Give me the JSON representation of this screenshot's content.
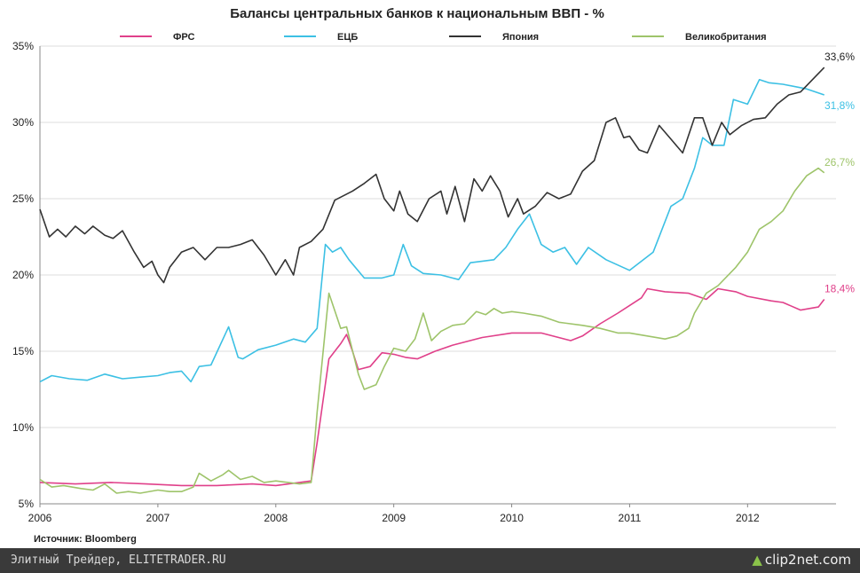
{
  "colors": {
    "fed": "#e0408a",
    "ecb": "#3cc0e4",
    "japan": "#333333",
    "uk": "#9ec46a"
  },
  "source": "Источник: Bloomberg",
  "footer": {
    "site": "Элитный Трейдер, ELITETRADER.RU",
    "logo": "clip2net.com"
  },
  "chart_data": {
    "type": "line",
    "title": "Балансы центральных банков к национальным ВВП - %",
    "xlabel": "",
    "ylabel": "",
    "xlim": [
      2006,
      2012.75
    ],
    "ylim": [
      5,
      35
    ],
    "yticks": [
      5,
      10,
      15,
      20,
      25,
      30,
      35
    ],
    "ytick_labels": [
      "5%",
      "10%",
      "15%",
      "20%",
      "25%",
      "30%",
      "35%"
    ],
    "xticks": [
      2006,
      2007,
      2008,
      2009,
      2010,
      2011,
      2012
    ],
    "xtick_labels": [
      "2006",
      "2007",
      "2008",
      "2009",
      "2010",
      "2011",
      "2012"
    ],
    "legend_position": "top",
    "grid": "horizontal",
    "series": [
      {
        "key": "fed",
        "name": "ФРС",
        "end_label": "18,4%",
        "x": [
          2006,
          2006.3,
          2006.6,
          2006.9,
          2007.2,
          2007.5,
          2007.8,
          2008.0,
          2008.2,
          2008.3,
          2008.35,
          2008.45,
          2008.55,
          2008.6,
          2008.65,
          2008.7,
          2008.8,
          2008.9,
          2009.0,
          2009.1,
          2009.2,
          2009.35,
          2009.5,
          2009.75,
          2010.0,
          2010.25,
          2010.5,
          2010.6,
          2010.75,
          2010.9,
          2011.0,
          2011.1,
          2011.15,
          2011.3,
          2011.5,
          2011.65,
          2011.75,
          2011.9,
          2012.0,
          2012.2,
          2012.3,
          2012.45,
          2012.6,
          2012.65
        ],
        "values": [
          6.4,
          6.3,
          6.4,
          6.3,
          6.2,
          6.2,
          6.3,
          6.2,
          6.4,
          6.5,
          9.0,
          14.5,
          15.5,
          16.1,
          15.0,
          13.8,
          14.0,
          14.9,
          14.8,
          14.6,
          14.5,
          15.0,
          15.4,
          15.9,
          16.2,
          16.2,
          15.7,
          16.0,
          16.8,
          17.5,
          18.0,
          18.5,
          19.1,
          18.9,
          18.8,
          18.4,
          19.1,
          18.9,
          18.6,
          18.3,
          18.2,
          17.7,
          17.9,
          18.4
        ]
      },
      {
        "key": "ecb",
        "name": "ЕЦБ",
        "end_label": "31,8%",
        "x": [
          2006,
          2006.1,
          2006.25,
          2006.4,
          2006.55,
          2006.7,
          2006.85,
          2007.0,
          2007.1,
          2007.2,
          2007.28,
          2007.35,
          2007.45,
          2007.6,
          2007.68,
          2007.72,
          2007.85,
          2008.0,
          2008.15,
          2008.25,
          2008.35,
          2008.42,
          2008.48,
          2008.55,
          2008.62,
          2008.75,
          2008.9,
          2009.0,
          2009.08,
          2009.15,
          2009.25,
          2009.4,
          2009.55,
          2009.65,
          2009.85,
          2009.95,
          2010.05,
          2010.15,
          2010.25,
          2010.35,
          2010.45,
          2010.55,
          2010.65,
          2010.8,
          2011.0,
          2011.2,
          2011.35,
          2011.45,
          2011.55,
          2011.62,
          2011.7,
          2011.8,
          2011.88,
          2012.0,
          2012.1,
          2012.18,
          2012.3,
          2012.5,
          2012.65
        ],
        "values": [
          13.0,
          13.4,
          13.2,
          13.1,
          13.5,
          13.2,
          13.3,
          13.4,
          13.6,
          13.7,
          13.0,
          14.0,
          14.1,
          16.6,
          14.6,
          14.5,
          15.1,
          15.4,
          15.8,
          15.6,
          16.5,
          22.0,
          21.5,
          21.8,
          21.0,
          19.8,
          19.8,
          20.0,
          22.0,
          20.6,
          20.1,
          20.0,
          19.7,
          20.8,
          21.0,
          21.8,
          23.0,
          24.0,
          22.0,
          21.5,
          21.8,
          20.7,
          21.8,
          21.0,
          20.3,
          21.5,
          24.5,
          25.0,
          27.0,
          29.0,
          28.5,
          28.5,
          31.5,
          31.2,
          32.8,
          32.6,
          32.5,
          32.2,
          31.8
        ]
      },
      {
        "key": "japan",
        "name": "Япония",
        "end_label": "33,6%",
        "x": [
          2006,
          2006.08,
          2006.15,
          2006.22,
          2006.3,
          2006.38,
          2006.45,
          2006.55,
          2006.62,
          2006.7,
          2006.8,
          2006.88,
          2006.95,
          2007.0,
          2007.05,
          2007.1,
          2007.2,
          2007.3,
          2007.4,
          2007.5,
          2007.6,
          2007.7,
          2007.8,
          2007.9,
          2008.0,
          2008.08,
          2008.15,
          2008.2,
          2008.3,
          2008.4,
          2008.5,
          2008.65,
          2008.75,
          2008.85,
          2008.92,
          2009.0,
          2009.05,
          2009.12,
          2009.2,
          2009.3,
          2009.4,
          2009.45,
          2009.52,
          2009.6,
          2009.68,
          2009.75,
          2009.82,
          2009.9,
          2009.97,
          2010.05,
          2010.1,
          2010.2,
          2010.3,
          2010.4,
          2010.5,
          2010.6,
          2010.7,
          2010.8,
          2010.88,
          2010.95,
          2011.0,
          2011.08,
          2011.15,
          2011.25,
          2011.35,
          2011.45,
          2011.55,
          2011.62,
          2011.7,
          2011.78,
          2011.85,
          2011.95,
          2012.05,
          2012.15,
          2012.25,
          2012.35,
          2012.45,
          2012.55,
          2012.65
        ],
        "values": [
          24.3,
          22.5,
          23.0,
          22.5,
          23.2,
          22.7,
          23.2,
          22.6,
          22.4,
          22.9,
          21.5,
          20.5,
          20.9,
          20.0,
          19.5,
          20.5,
          21.5,
          21.8,
          21.0,
          21.8,
          21.8,
          22.0,
          22.3,
          21.3,
          20.0,
          21.0,
          20.0,
          21.8,
          22.2,
          23.0,
          24.9,
          25.5,
          26.0,
          26.6,
          25.0,
          24.2,
          25.5,
          24.0,
          23.5,
          25.0,
          25.5,
          24.0,
          25.8,
          23.5,
          26.3,
          25.5,
          26.5,
          25.5,
          23.8,
          25.0,
          24.0,
          24.5,
          25.4,
          25.0,
          25.3,
          26.8,
          27.5,
          30.0,
          30.3,
          29.0,
          29.1,
          28.2,
          28.0,
          29.8,
          28.9,
          28.0,
          30.3,
          30.3,
          28.5,
          30.0,
          29.2,
          29.8,
          30.2,
          30.3,
          31.2,
          31.8,
          32.0,
          32.8,
          33.6
        ]
      },
      {
        "key": "uk",
        "name": "Великобритания",
        "end_label": "26,7%",
        "x": [
          2006,
          2006.1,
          2006.2,
          2006.35,
          2006.45,
          2006.55,
          2006.65,
          2006.75,
          2006.85,
          2007.0,
          2007.1,
          2007.2,
          2007.3,
          2007.35,
          2007.45,
          2007.55,
          2007.6,
          2007.7,
          2007.8,
          2007.9,
          2008.0,
          2008.2,
          2008.3,
          2008.35,
          2008.45,
          2008.55,
          2008.6,
          2008.7,
          2008.75,
          2008.85,
          2008.92,
          2009.0,
          2009.1,
          2009.18,
          2009.25,
          2009.32,
          2009.4,
          2009.5,
          2009.6,
          2009.7,
          2009.78,
          2009.85,
          2009.92,
          2010.0,
          2010.1,
          2010.25,
          2010.4,
          2010.6,
          2010.75,
          2010.9,
          2011.0,
          2011.15,
          2011.3,
          2011.4,
          2011.5,
          2011.55,
          2011.65,
          2011.75,
          2011.9,
          2012.0,
          2012.1,
          2012.2,
          2012.3,
          2012.4,
          2012.5,
          2012.6,
          2012.65
        ],
        "values": [
          6.6,
          6.1,
          6.2,
          6.0,
          5.9,
          6.3,
          5.7,
          5.8,
          5.7,
          5.9,
          5.8,
          5.8,
          6.1,
          7.0,
          6.5,
          6.9,
          7.2,
          6.6,
          6.8,
          6.4,
          6.5,
          6.3,
          6.4,
          11.0,
          18.8,
          16.5,
          16.6,
          13.5,
          12.5,
          12.8,
          14.0,
          15.2,
          15.0,
          15.8,
          17.5,
          15.7,
          16.3,
          16.7,
          16.8,
          17.6,
          17.4,
          17.8,
          17.5,
          17.6,
          17.5,
          17.3,
          16.9,
          16.7,
          16.5,
          16.2,
          16.2,
          16.0,
          15.8,
          16.0,
          16.5,
          17.5,
          18.8,
          19.3,
          20.5,
          21.5,
          23.0,
          23.5,
          24.2,
          25.5,
          26.5,
          27.0,
          26.7
        ]
      }
    ]
  }
}
